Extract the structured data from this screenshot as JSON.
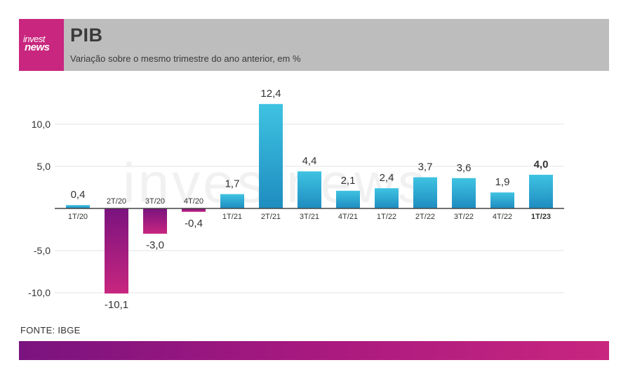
{
  "header": {
    "logo_line1": "invest",
    "logo_line2": "news",
    "title": "PIB",
    "subtitle": "Variação sobre o mesmo trimestre do ano anterior, em %"
  },
  "watermark": "investnews",
  "source": "FONTE: IBGE",
  "colors": {
    "positive_top": "#3fc3e2",
    "positive_bottom": "#1e8cc0",
    "negative_top": "#7a137f",
    "negative_bottom": "#c8267f",
    "header_bg": "#bdbdbd",
    "logo_bg": "#c8267f"
  },
  "chart_data": {
    "type": "bar",
    "title": "PIB",
    "subtitle": "Variação sobre o mesmo trimestre do ano anterior, em %",
    "categories": [
      "1T/20",
      "2T/20",
      "3T/20",
      "4T/20",
      "1T/21",
      "2T/21",
      "3T/21",
      "4T/21",
      "1T/22",
      "2T/22",
      "3T/22",
      "4T/22",
      "1T/23"
    ],
    "values": [
      0.4,
      -10.1,
      -3.0,
      -0.4,
      1.7,
      12.4,
      4.4,
      2.1,
      2.4,
      3.7,
      3.6,
      1.9,
      4.0
    ],
    "value_labels": [
      "0,4",
      "-10,1",
      "-3,0",
      "-0,4",
      "1,7",
      "12,4",
      "4,4",
      "2,1",
      "2,4",
      "3,7",
      "3,6",
      "1,9",
      "4,0"
    ],
    "highlight_index": 12,
    "yticks": [
      10.0,
      5.0,
      -5.0,
      -10.0
    ],
    "ytick_labels": [
      "10,0",
      "5,0",
      "-5,0",
      "-10,0"
    ],
    "ylim": [
      -10.5,
      12.5
    ],
    "grid": true,
    "xlabel": "",
    "ylabel": ""
  }
}
